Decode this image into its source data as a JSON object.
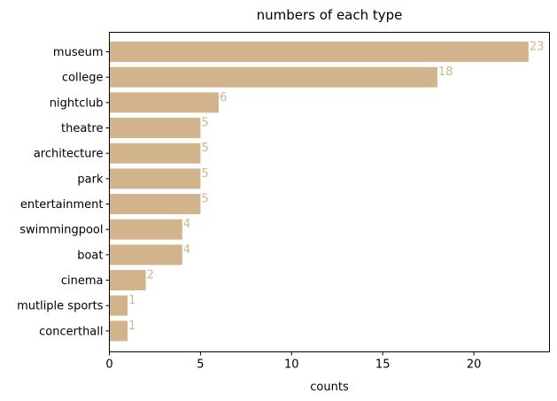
{
  "chart_data": {
    "type": "bar",
    "orientation": "horizontal",
    "title": "numbers of each type",
    "xlabel": "counts",
    "ylabel": "",
    "categories": [
      "museum",
      "college",
      "nightclub",
      "theatre",
      "architecture",
      "park",
      "entertainment",
      "swimmingpool",
      "boat",
      "cinema",
      "mutliple sports",
      "concerthall"
    ],
    "values": [
      23,
      18,
      6,
      5,
      5,
      5,
      5,
      4,
      4,
      2,
      1,
      1
    ],
    "xlim": [
      0,
      24.15
    ],
    "xticks": [
      0,
      5,
      10,
      15,
      20
    ],
    "grid": false,
    "bar_color": "#d2b48c",
    "data_label_color": "#d2b48c"
  }
}
